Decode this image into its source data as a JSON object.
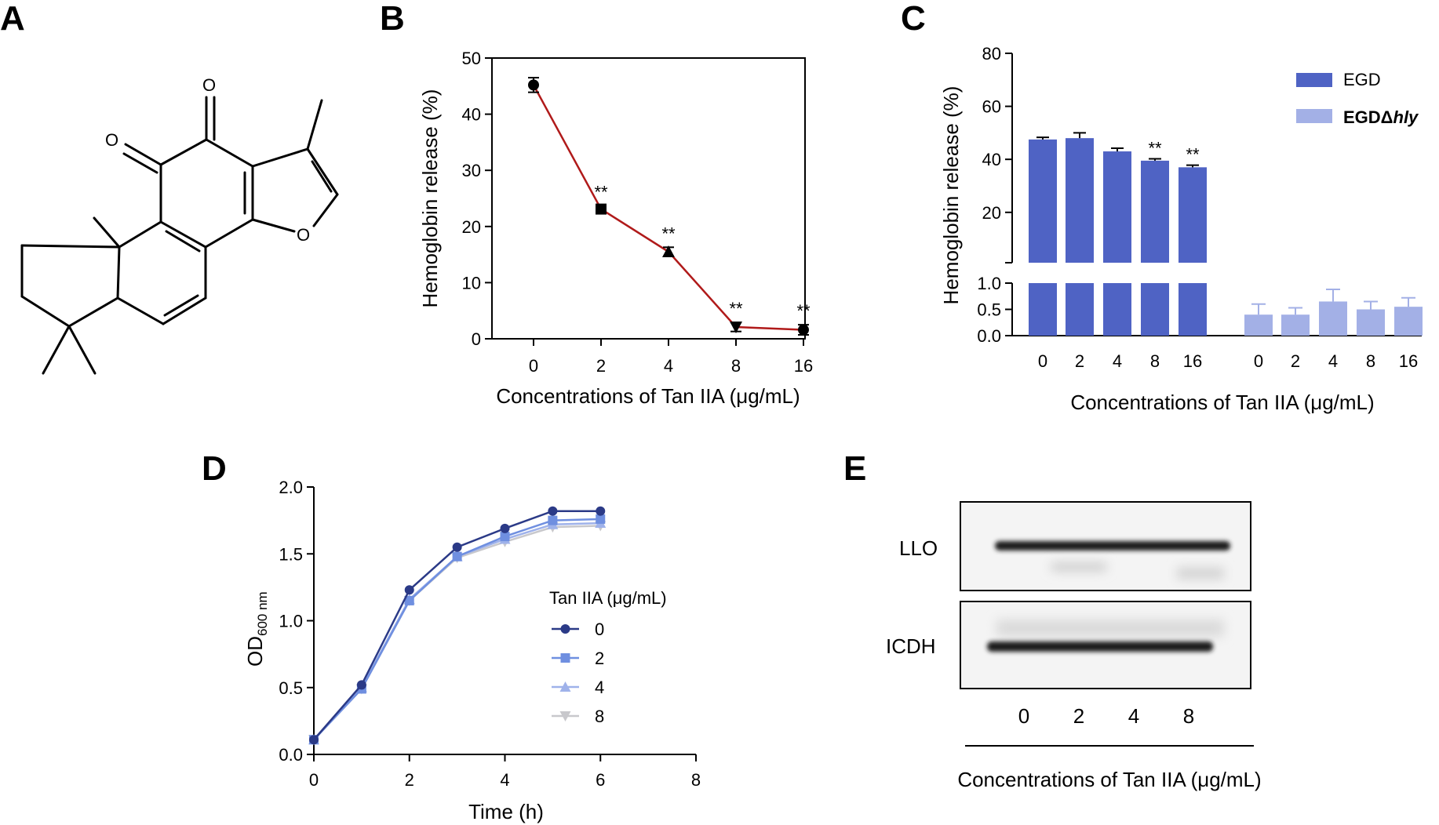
{
  "panels": {
    "a": {
      "label": "A",
      "atoms": [
        "O",
        "O",
        "O"
      ]
    },
    "b": {
      "label": "B"
    },
    "c": {
      "label": "C"
    },
    "d": {
      "label": "D"
    },
    "e": {
      "label": "E",
      "bands": [
        "LLO",
        "ICDH"
      ],
      "lanes": [
        "0",
        "2",
        "4",
        "8"
      ],
      "xlabel": "Concentrations of Tan IIA (μg/mL)"
    }
  },
  "chart_data": [
    {
      "id": "B",
      "type": "line",
      "categories": [
        "0",
        "2",
        "4",
        "8",
        "16"
      ],
      "values": [
        45.2,
        23.1,
        15.5,
        2.1,
        1.6
      ],
      "errors": [
        1.3,
        0.6,
        0.8,
        0.8,
        0.9
      ],
      "significance": [
        "",
        "**",
        "**",
        "**",
        "**"
      ],
      "color": "#b01a1a",
      "xlabel": "Concentrations of Tan IIA (μg/mL)",
      "ylabel": "Hemoglobin release (%)",
      "ylim": [
        0,
        50
      ],
      "yticks": [
        "0",
        "10",
        "20",
        "30",
        "40",
        "50"
      ]
    },
    {
      "id": "C",
      "type": "bar",
      "categories": [
        "0",
        "2",
        "4",
        "8",
        "16"
      ],
      "series": [
        {
          "name": "EGD",
          "values": [
            47.5,
            48.0,
            43.0,
            39.5,
            37.0
          ],
          "errors": [
            0.8,
            2.0,
            1.2,
            0.7,
            0.8
          ],
          "color": "#4f63c4"
        },
        {
          "name": "EGDΔhly",
          "name_prefix": "EGDΔ",
          "name_italic": "hly",
          "values": [
            0.4,
            0.4,
            0.65,
            0.5,
            0.55
          ],
          "errors": [
            0.2,
            0.13,
            0.23,
            0.15,
            0.17
          ],
          "color": "#a3b0e6"
        }
      ],
      "significance": [
        "",
        "",
        "",
        "**",
        "**"
      ],
      "xlabel": "Concentrations of Tan IIA (μg/mL)",
      "ylabel": "Hemoglobin release (%)",
      "ylim_lower": [
        0,
        1.0
      ],
      "ylim_upper": [
        1.0,
        80
      ],
      "yticks_lower": [
        "0.0",
        "0.5",
        "1.0"
      ],
      "yticks_upper": [
        "20",
        "40",
        "60",
        "80"
      ]
    },
    {
      "id": "D",
      "type": "line",
      "x": [
        0,
        1,
        2,
        3,
        4,
        5,
        6
      ],
      "series": [
        {
          "name": "0",
          "values": [
            0.11,
            0.52,
            1.23,
            1.55,
            1.69,
            1.82,
            1.82
          ],
          "color": "#2b3a87",
          "marker": "circle"
        },
        {
          "name": "2",
          "values": [
            0.11,
            0.49,
            1.15,
            1.48,
            1.63,
            1.75,
            1.76
          ],
          "color": "#6f8fe0",
          "marker": "square"
        },
        {
          "name": "4",
          "values": [
            0.11,
            0.5,
            1.16,
            1.48,
            1.61,
            1.72,
            1.73
          ],
          "color": "#9fb2ea",
          "marker": "triangle"
        },
        {
          "name": "8",
          "values": [
            0.11,
            0.49,
            1.15,
            1.47,
            1.59,
            1.7,
            1.71
          ],
          "color": "#c8c8cc",
          "marker": "triangle-down"
        }
      ],
      "legend_title": "Tan IIA (μg/mL)",
      "xlabel": "Time (h)",
      "ylabel_main": "OD",
      "ylabel_sub": "600 nm",
      "xlim": [
        0,
        8
      ],
      "ylim": [
        0,
        2.0
      ],
      "xticks": [
        "0",
        "2",
        "4",
        "6",
        "8"
      ],
      "yticks": [
        "0.0",
        "0.5",
        "1.0",
        "1.5",
        "2.0"
      ]
    }
  ]
}
